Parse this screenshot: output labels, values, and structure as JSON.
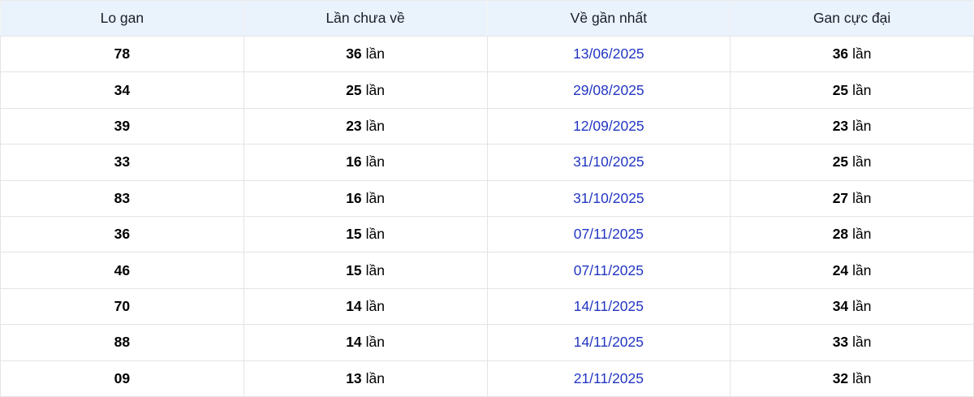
{
  "colors": {
    "header_bg": "#eaf2fc",
    "border": "#e4e4e4",
    "date_link_blue": "#2236c3",
    "header_text": "#1b1e28",
    "body_text": "#000000"
  },
  "table": {
    "headers": [
      "Lo gan",
      "Lần chưa về",
      "Về gần nhất",
      "Gan cực đại"
    ],
    "unit_label": "lần",
    "rows": [
      {
        "lo_gan": "78",
        "lan_chua_ve": "36",
        "ve_gan_nhat": "13/06/2025",
        "gan_cuc_dai": "36"
      },
      {
        "lo_gan": "34",
        "lan_chua_ve": "25",
        "ve_gan_nhat": "29/08/2025",
        "gan_cuc_dai": "25"
      },
      {
        "lo_gan": "39",
        "lan_chua_ve": "23",
        "ve_gan_nhat": "12/09/2025",
        "gan_cuc_dai": "23"
      },
      {
        "lo_gan": "33",
        "lan_chua_ve": "16",
        "ve_gan_nhat": "31/10/2025",
        "gan_cuc_dai": "25"
      },
      {
        "lo_gan": "83",
        "lan_chua_ve": "16",
        "ve_gan_nhat": "31/10/2025",
        "gan_cuc_dai": "27"
      },
      {
        "lo_gan": "36",
        "lan_chua_ve": "15",
        "ve_gan_nhat": "07/11/2025",
        "gan_cuc_dai": "28"
      },
      {
        "lo_gan": "46",
        "lan_chua_ve": "15",
        "ve_gan_nhat": "07/11/2025",
        "gan_cuc_dai": "24"
      },
      {
        "lo_gan": "70",
        "lan_chua_ve": "14",
        "ve_gan_nhat": "14/11/2025",
        "gan_cuc_dai": "34"
      },
      {
        "lo_gan": "88",
        "lan_chua_ve": "14",
        "ve_gan_nhat": "14/11/2025",
        "gan_cuc_dai": "33"
      },
      {
        "lo_gan": "09",
        "lan_chua_ve": "13",
        "ve_gan_nhat": "21/11/2025",
        "gan_cuc_dai": "32"
      }
    ]
  }
}
